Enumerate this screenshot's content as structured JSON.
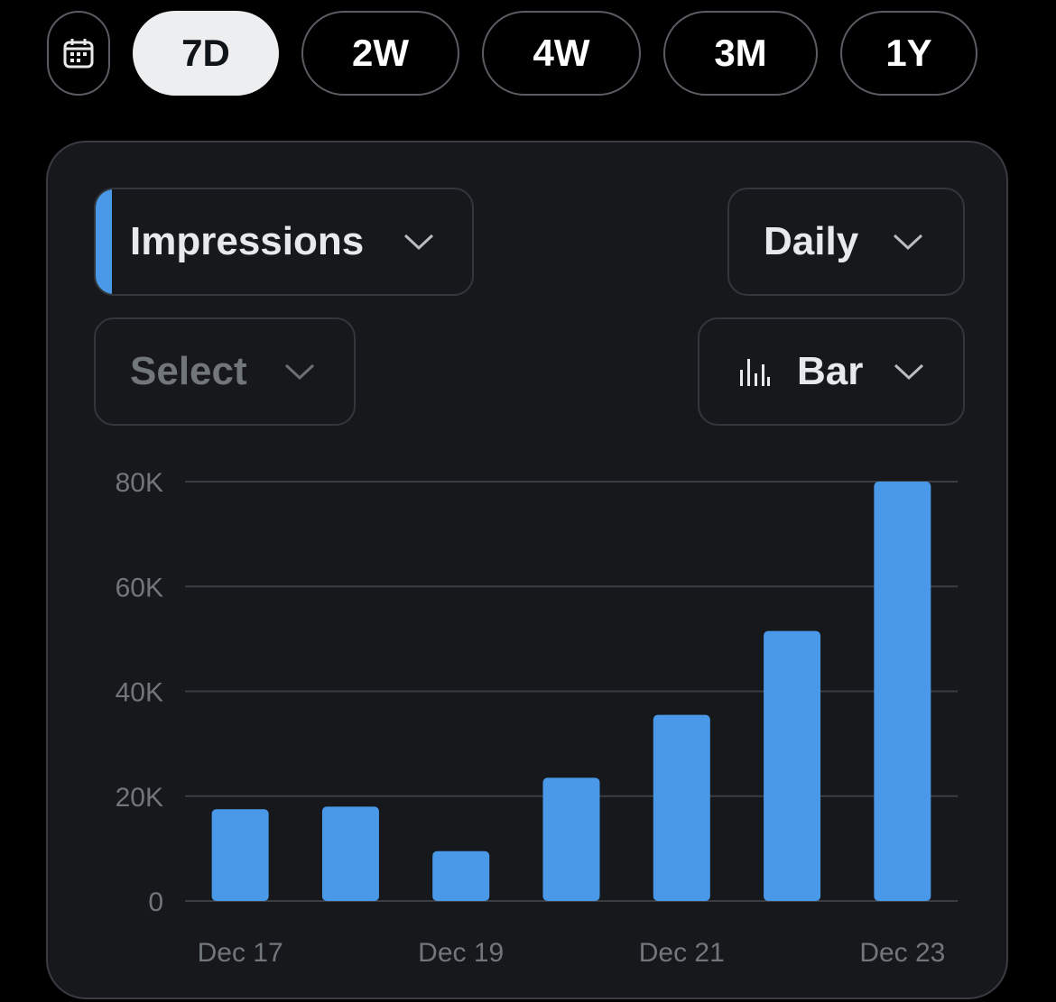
{
  "range_selector": {
    "calendar_icon": "calendar-icon",
    "options": [
      "7D",
      "2W",
      "4W",
      "3M",
      "1Y"
    ],
    "selected": "7D"
  },
  "card": {
    "metric_dropdown": {
      "label": "Impressions",
      "accent_color": "#4a99e9",
      "icon": "chevron-down-icon"
    },
    "period_dropdown": {
      "label": "Daily",
      "icon": "chevron-down-icon"
    },
    "compare_dropdown": {
      "label": "Select",
      "icon": "chevron-down-icon"
    },
    "chart_type_dropdown": {
      "label": "Bar",
      "icon": "bar-chart-icon"
    }
  },
  "colors": {
    "bar": "#4a99e9",
    "grid": "#3a3d42",
    "tick_text": "#71767b",
    "card_bg": "#16181c",
    "page_bg": "#000000"
  },
  "chart_data": {
    "type": "bar",
    "categories": [
      "Dec 17",
      "Dec 18",
      "Dec 19",
      "Dec 20",
      "Dec 21",
      "Dec 22",
      "Dec 23"
    ],
    "values": [
      17500,
      18000,
      9500,
      23500,
      35500,
      51500,
      80000
    ],
    "x_tick_labels": [
      "Dec 17",
      "Dec 19",
      "Dec 21",
      "Dec 23"
    ],
    "y_ticks": [
      {
        "value": 0,
        "label": "0"
      },
      {
        "value": 20000,
        "label": "20K"
      },
      {
        "value": 40000,
        "label": "40K"
      },
      {
        "value": 60000,
        "label": "60K"
      },
      {
        "value": 80000,
        "label": "80K"
      }
    ],
    "ylim": [
      0,
      80000
    ],
    "grid": true,
    "legend": "none"
  }
}
